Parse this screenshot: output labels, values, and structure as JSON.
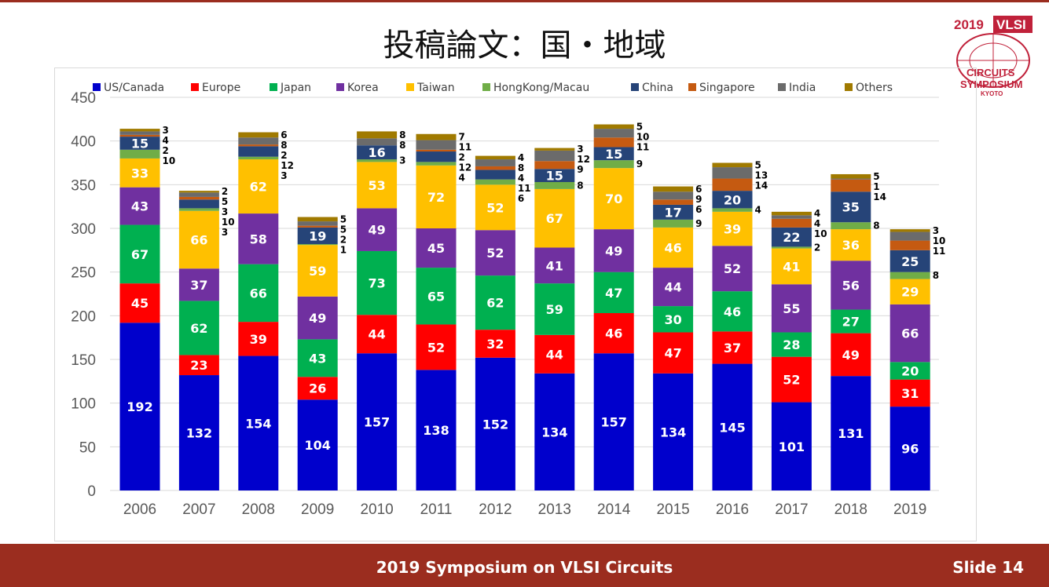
{
  "slide": {
    "title": "投稿論文：国・地域",
    "footer_title": "2019 Symposium on VLSI Circuits",
    "slide_number": "Slide 14",
    "logo_text": "2019 VLSI CIRCUITS SYMPOSIUM KYOTO"
  },
  "chart_data": {
    "type": "bar",
    "stacked": true,
    "categories": [
      "2006",
      "2007",
      "2008",
      "2009",
      "2010",
      "2011",
      "2012",
      "2013",
      "2014",
      "2015",
      "2016",
      "2017",
      "2018",
      "2019"
    ],
    "ylim": [
      0,
      450
    ],
    "yticks": [
      0,
      50,
      100,
      150,
      200,
      250,
      300,
      350,
      400,
      450
    ],
    "grid": true,
    "legend": "top",
    "series": [
      {
        "name": "US/Canada",
        "color": "#0000cc",
        "values": [
          192,
          132,
          154,
          104,
          157,
          138,
          152,
          134,
          157,
          134,
          145,
          101,
          131,
          96
        ]
      },
      {
        "name": "Europe",
        "color": "#ff0000",
        "values": [
          45,
          23,
          39,
          26,
          44,
          52,
          32,
          44,
          46,
          47,
          37,
          52,
          49,
          31
        ]
      },
      {
        "name": "Japan",
        "color": "#00b050",
        "values": [
          67,
          62,
          66,
          43,
          73,
          65,
          62,
          59,
          47,
          30,
          46,
          28,
          27,
          20
        ]
      },
      {
        "name": "Korea",
        "color": "#7030a0",
        "values": [
          43,
          37,
          58,
          49,
          49,
          45,
          52,
          41,
          49,
          44,
          52,
          55,
          56,
          66
        ]
      },
      {
        "name": "Taiwan",
        "color": "#ffc000",
        "values": [
          33,
          66,
          62,
          59,
          53,
          72,
          52,
          67,
          70,
          46,
          39,
          41,
          36,
          29
        ]
      },
      {
        "name": "HongKong/Macau",
        "color": "#70ad47",
        "values": [
          10,
          3,
          3,
          1,
          3,
          4,
          6,
          8,
          9,
          9,
          4,
          2,
          8,
          8
        ]
      },
      {
        "name": "China",
        "color": "#264478",
        "values": [
          15,
          10,
          12,
          19,
          16,
          12,
          11,
          15,
          15,
          17,
          20,
          22,
          35,
          25
        ]
      },
      {
        "name": "Singapore",
        "color": "#c55a11",
        "values": [
          2,
          3,
          2,
          2,
          0,
          2,
          4,
          9,
          11,
          6,
          14,
          10,
          14,
          11
        ]
      },
      {
        "name": "India",
        "color": "#6b6b6b",
        "values": [
          4,
          5,
          8,
          5,
          8,
          11,
          8,
          12,
          10,
          9,
          13,
          4,
          1,
          10
        ]
      },
      {
        "name": "Others",
        "color": "#a07a00",
        "values": [
          3,
          2,
          6,
          5,
          8,
          7,
          4,
          3,
          5,
          6,
          5,
          4,
          5,
          3
        ]
      }
    ]
  }
}
